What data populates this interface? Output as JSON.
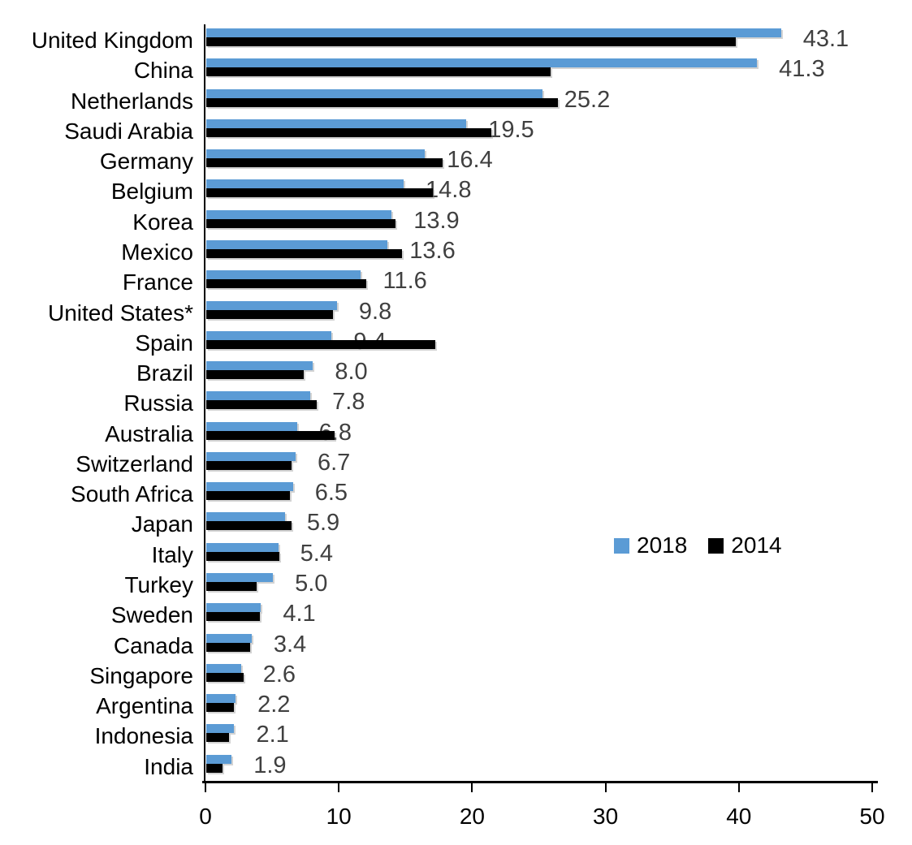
{
  "chart_data": {
    "type": "bar",
    "orientation": "horizontal",
    "title": "",
    "xlabel": "",
    "ylabel": "",
    "xlim": [
      0,
      50
    ],
    "x_ticks": [
      0,
      10,
      20,
      30,
      40,
      50
    ],
    "grid": false,
    "legend_position": "middle-right",
    "categories": [
      "United Kingdom",
      "China",
      "Netherlands",
      "Saudi Arabia",
      "Germany",
      "Belgium",
      "Korea",
      "Mexico",
      "France",
      "United States*",
      "Spain",
      "Brazil",
      "Russia",
      "Australia",
      "Switzerland",
      "South Africa",
      "Japan",
      "Italy",
      "Turkey",
      "Sweden",
      "Canada",
      "Singapore",
      "Argentina",
      "Indonesia",
      "India"
    ],
    "series": [
      {
        "name": "2018",
        "color": "#5B9BD5",
        "values": [
          43.1,
          41.3,
          25.2,
          19.5,
          16.4,
          14.8,
          13.9,
          13.6,
          11.6,
          9.8,
          9.4,
          8.0,
          7.8,
          6.8,
          6.7,
          6.5,
          5.9,
          5.4,
          5.0,
          4.1,
          3.4,
          2.6,
          2.2,
          2.1,
          1.9
        ]
      },
      {
        "name": "2014",
        "color": "#000000",
        "values": [
          39.7,
          25.8,
          26.4,
          21.4,
          17.7,
          17.0,
          14.2,
          14.7,
          12.0,
          9.5,
          17.2,
          7.3,
          8.3,
          9.6,
          6.4,
          6.3,
          6.4,
          5.5,
          3.8,
          4.0,
          3.3,
          2.8,
          2.1,
          1.7,
          1.2
        ]
      }
    ],
    "data_labels": {
      "series": "2018",
      "color": "#404040",
      "values": [
        "43.1",
        "41.3",
        "25.2",
        "19.5",
        "16.4",
        "14.8",
        "13.9",
        "13.6",
        "11.6",
        "9.8",
        "9.4",
        "8.0",
        "7.8",
        "6.8",
        "6.7",
        "6.5",
        "5.9",
        "5.4",
        "5.0",
        "4.1",
        "3.4",
        "2.6",
        "2.2",
        "2.1",
        "1.9"
      ]
    },
    "axis_color": "#000000"
  }
}
